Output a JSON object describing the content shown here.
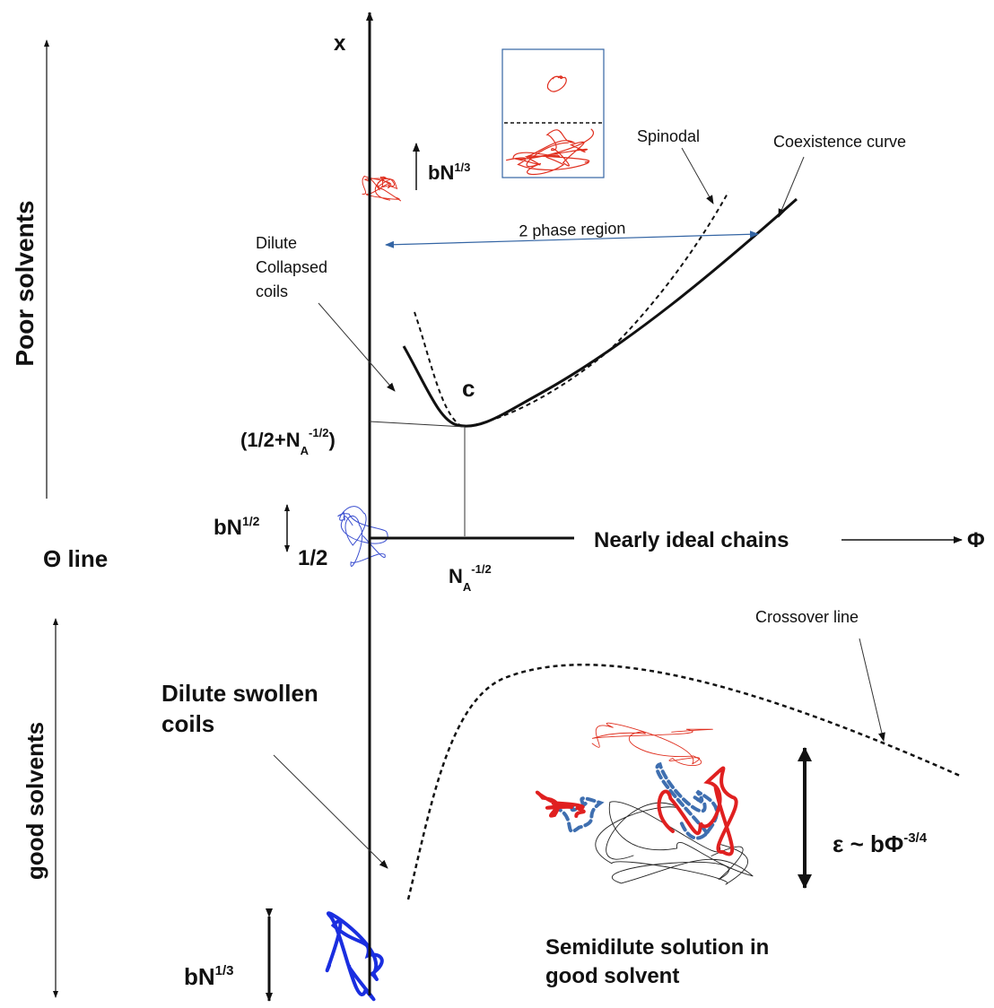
{
  "axes": {
    "y_label": "x",
    "x_label": "Φ"
  },
  "regions": {
    "poor": "Poor solvents",
    "good": "good solvents",
    "theta": "Θ line"
  },
  "labels": {
    "collapsed_size": {
      "base": "bN",
      "sup": "1/3"
    },
    "ideal_size": {
      "base": "bN",
      "sup": "1/2"
    },
    "theta_value": "1/2",
    "critical_x": {
      "open": "(1/2+N",
      "sub": "A",
      "sup": "-1/2",
      "close": ")"
    },
    "critical_phi": {
      "base": "N",
      "sub": "A",
      "sup": "-1/2"
    },
    "swollen_size": {
      "base": "bN",
      "sup": "1/3"
    },
    "spinodal": "Spinodal",
    "coexistence": "Coexistence curve",
    "two_phase": "2 phase region",
    "dilute_collapsed": [
      "Dilute",
      "Collapsed",
      "coils"
    ],
    "critical_point": "c",
    "nearly_ideal": "Nearly ideal chains",
    "crossover": "Crossover line",
    "dilute_swollen": [
      "Dilute swollen",
      "coils"
    ],
    "correlation": {
      "base": "ε ~ bΦ",
      "sup": "-3/4"
    },
    "semidilute": [
      "Semidilute solution in",
      "good solvent"
    ]
  }
}
